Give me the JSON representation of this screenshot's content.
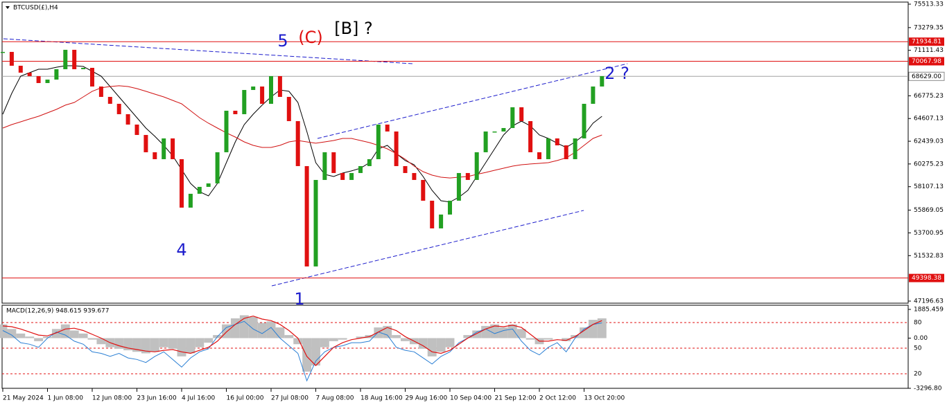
{
  "chart_data": {
    "type": "candlestick",
    "title": "BTCUSD(£),H4",
    "up_color": "#22a022",
    "down_color": "#e01010",
    "categories": [
      "21 May 2024",
      null,
      null,
      null,
      null,
      "1 Jun 08:00",
      null,
      null,
      null,
      null,
      "12 Jun 08:00",
      null,
      null,
      null,
      null,
      "23 Jun 16:00",
      null,
      null,
      null,
      null,
      "4 Jul 16:00",
      null,
      null,
      null,
      null,
      "16 Jul 00:00",
      null,
      null,
      null,
      null,
      "27 Jul 08:00",
      null,
      null,
      null,
      null,
      "7 Aug 08:00",
      null,
      null,
      null,
      null,
      "18 Aug 16:00",
      null,
      null,
      null,
      null,
      "29 Aug 16:00",
      null,
      null,
      null,
      null,
      "10 Sep 04:00",
      null,
      null,
      null,
      null,
      "21 Sep 12:00",
      null,
      null,
      null,
      null,
      "2 Oct 12:00",
      null,
      null,
      null,
      null,
      "13 Oct 20:00",
      null,
      null
    ],
    "close": [
      70960,
      69640,
      68980,
      68650,
      67990,
      68320,
      69310,
      71160,
      69310,
      69440,
      67660,
      66670,
      66010,
      65020,
      64030,
      63040,
      61390,
      60730,
      62710,
      60730,
      56110,
      57430,
      58090,
      58420,
      61390,
      65350,
      65020,
      67330,
      67660,
      66010,
      68650,
      66670,
      64360,
      60070,
      50500,
      58750,
      61390,
      59410,
      58750,
      59410,
      60070,
      60730,
      64030,
      63370,
      60070,
      59410,
      58750,
      56770,
      54130,
      55450,
      56770,
      59410,
      58750,
      61390,
      63370,
      63370,
      63700,
      65680,
      64360,
      61390,
      60730,
      62710,
      62050,
      60730,
      62710,
      66010,
      67660,
      68650
    ],
    "series": [
      {
        "color": "#000000",
        "values": [
          65020,
          67000,
          68650,
          68980,
          69310,
          69310,
          69500,
          69640,
          69640,
          69570,
          69110,
          68650,
          67660,
          66670,
          65680,
          64690,
          63700,
          62910,
          62050,
          61060,
          59740,
          58420,
          57630,
          57230,
          58420,
          60400,
          62380,
          64030,
          65020,
          65880,
          66670,
          67330,
          67200,
          66140,
          63370,
          60400,
          59280,
          59080,
          59410,
          59610,
          59870,
          60400,
          61720,
          62050,
          61260,
          60600,
          60200,
          59080,
          57760,
          56770,
          56640,
          57100,
          57760,
          59080,
          60400,
          61720,
          63040,
          63900,
          64360,
          63900,
          63040,
          62710,
          62250,
          61850,
          62380,
          63040,
          64160,
          64820
        ]
      },
      {
        "color": "#d01010",
        "values": [
          63700,
          64030,
          64290,
          64560,
          64820,
          65150,
          65480,
          65880,
          66140,
          66670,
          67200,
          67530,
          67660,
          67730,
          67660,
          67460,
          67200,
          66930,
          66670,
          66340,
          66010,
          65350,
          64690,
          64160,
          63700,
          63240,
          62840,
          62380,
          62050,
          61850,
          61850,
          62050,
          62380,
          62510,
          62380,
          62250,
          62380,
          62510,
          62710,
          62710,
          62510,
          62310,
          62050,
          61720,
          61260,
          60730,
          60070,
          59540,
          59210,
          59010,
          58940,
          59010,
          59080,
          59280,
          59470,
          59670,
          59870,
          60070,
          60200,
          60270,
          60330,
          60400,
          60600,
          60860,
          61390,
          62050,
          62710,
          63040
        ]
      }
    ],
    "ylim": [
      47196.63,
      75513.33
    ],
    "yticks": [
      75513.33,
      73279.35,
      71111.43,
      66775.23,
      64607.13,
      62439.03,
      60275.23,
      58107.13,
      55869.05,
      53700.95,
      51532.83,
      47196.63
    ],
    "levels": [
      {
        "value": 71934.81,
        "color": "#e01010"
      },
      {
        "value": 70067.98,
        "color": "#e01010"
      },
      {
        "value": 49398.38,
        "color": "#e01010"
      },
      {
        "value": 68629,
        "label": "68629.00",
        "color": "#a0a0a0"
      }
    ],
    "annotations": [
      {
        "text": "5",
        "color": "#1c1ccc"
      },
      {
        "text": "(C)",
        "color": "#e01010"
      },
      {
        "text": "[B] ?",
        "color": "#000000"
      },
      {
        "text": "4",
        "color": "#1c1ccc"
      },
      {
        "text": "1",
        "color": "#1c1ccc"
      },
      {
        "text": "2 ?",
        "color": "#1c1ccc"
      }
    ],
    "macd": {
      "title": "MACD(12,26,9) 948.615 939.677",
      "histogram": {
        "color": "#c0c0c0",
        "values": [
          900,
          600,
          300,
          100,
          -200,
          100,
          600,
          900,
          500,
          300,
          -100,
          -400,
          -600,
          -700,
          -800,
          -900,
          -1000,
          -900,
          -600,
          -700,
          -1200,
          -1000,
          -600,
          -300,
          200,
          900,
          1300,
          1500,
          1400,
          1000,
          1100,
          700,
          200,
          -400,
          -2200,
          -1800,
          -600,
          -200,
          -100,
          0,
          100,
          200,
          700,
          800,
          200,
          -200,
          -400,
          -700,
          -1200,
          -900,
          -600,
          0,
          200,
          500,
          800,
          900,
          700,
          900,
          600,
          -100,
          -400,
          -100,
          0,
          -200,
          200,
          700,
          1200,
          1300
        ]
      },
      "signal": {
        "color": "#e01010",
        "values": [
          800,
          750,
          600,
          400,
          200,
          150,
          350,
          600,
          650,
          500,
          250,
          0,
          -300,
          -500,
          -650,
          -750,
          -850,
          -900,
          -800,
          -750,
          -900,
          -1000,
          -800,
          -600,
          -200,
          400,
          900,
          1300,
          1450,
          1250,
          1150,
          900,
          500,
          0,
          -1200,
          -1800,
          -1200,
          -600,
          -300,
          -100,
          0,
          100,
          400,
          700,
          500,
          100,
          -200,
          -500,
          -900,
          -1000,
          -800,
          -400,
          0,
          300,
          600,
          800,
          750,
          850,
          700,
          250,
          -200,
          -200,
          -100,
          -150,
          100,
          500,
          900,
          1150
        ]
      },
      "line": {
        "color": "#2a7fd4",
        "values": [
          500,
          200,
          -300,
          -400,
          -600,
          0,
          400,
          200,
          -200,
          -400,
          -900,
          -1000,
          -1200,
          -1000,
          -1300,
          -1400,
          -1600,
          -1200,
          -900,
          -1400,
          -1900,
          -1300,
          -900,
          -700,
          100,
          700,
          900,
          1100,
          600,
          300,
          700,
          0,
          -500,
          -1000,
          -2800,
          -1500,
          -900,
          -600,
          -500,
          -300,
          -300,
          -200,
          400,
          200,
          -600,
          -800,
          -900,
          -1300,
          -1700,
          -1200,
          -900,
          -300,
          0,
          400,
          600,
          300,
          500,
          600,
          -200,
          -800,
          -1100,
          -600,
          -300,
          -900,
          0,
          600,
          900,
          1000
        ]
      },
      "ylim": [
        -3296.8,
        1885.459
      ],
      "yticks": [
        1885.459,
        {
          "value": 0,
          "label": "0.00"
        },
        {
          "value": -3296.8,
          "label": "-3296.80"
        }
      ],
      "level_labels": [
        "80",
        "50",
        "20"
      ]
    }
  }
}
